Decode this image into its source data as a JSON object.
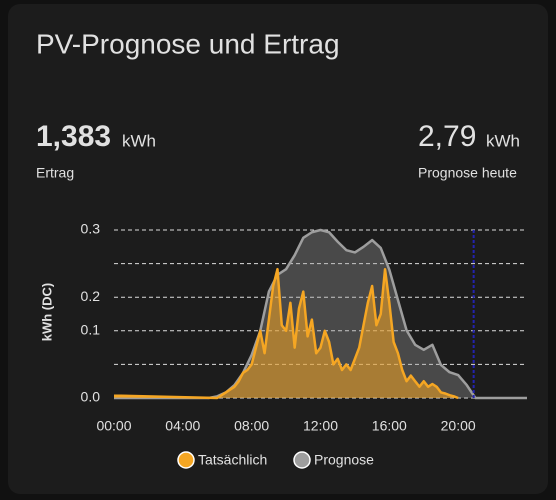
{
  "card": {
    "title": "PV-Prognose und Ertrag",
    "stats": [
      {
        "value": "1,383",
        "unit": "kWh",
        "label": "Ertrag",
        "color": "#f5a623"
      },
      {
        "value": "2,79",
        "unit": "kWh",
        "label": "Prognose heute",
        "color": "#9e9e9e"
      }
    ]
  },
  "chart_data": {
    "type": "area",
    "y_label": "kWh (DC)",
    "xlim": [
      0,
      24
    ],
    "xticks": [
      {
        "value": 0,
        "label": "00:00"
      },
      {
        "value": 4,
        "label": "04:00"
      },
      {
        "value": 8,
        "label": "08:00"
      },
      {
        "value": 12,
        "label": "12:00"
      },
      {
        "value": 16,
        "label": "16:00"
      },
      {
        "value": 20,
        "label": "20:00"
      }
    ],
    "ylim": [
      0,
      0.3
    ],
    "yticks": [
      {
        "value": 0,
        "label": "0.0"
      },
      {
        "value": 0.06,
        "label": null
      },
      {
        "value": 0.12,
        "label": "0.1"
      },
      {
        "value": 0.18,
        "label": "0.2"
      },
      {
        "value": 0.24,
        "label": null
      },
      {
        "value": 0.3,
        "label": "0.3"
      }
    ],
    "grid": true,
    "now_line": {
      "x": 20.9,
      "color": "#2323b0"
    },
    "series": [
      {
        "name": "Prognose",
        "color": "#9e9e9e",
        "x": [
          0,
          5.5,
          6,
          6.5,
          7,
          7.5,
          8,
          8.5,
          9,
          9.5,
          10,
          10.5,
          11,
          11.5,
          12,
          12.5,
          13,
          13.5,
          14,
          14.5,
          15,
          15.5,
          16,
          16.5,
          17,
          17.5,
          18,
          18.5,
          19,
          19.5,
          20,
          20.5,
          21,
          24
        ],
        "values": [
          0,
          0,
          0.003,
          0.01,
          0.023,
          0.045,
          0.077,
          0.12,
          0.19,
          0.22,
          0.23,
          0.255,
          0.286,
          0.296,
          0.3,
          0.296,
          0.279,
          0.264,
          0.26,
          0.27,
          0.282,
          0.268,
          0.229,
          0.175,
          0.121,
          0.095,
          0.086,
          0.095,
          0.059,
          0.046,
          0.041,
          0.023,
          0,
          0
        ]
      },
      {
        "name": "Tatsächlich",
        "color": "#f5a623",
        "x": [
          0,
          0.4,
          6,
          6.25,
          6.5,
          6.75,
          7,
          7.25,
          7.5,
          7.75,
          8,
          8.25,
          8.5,
          8.75,
          9,
          9.25,
          9.5,
          9.75,
          10,
          10.25,
          10.5,
          10.75,
          11,
          11.25,
          11.5,
          11.75,
          12,
          12.25,
          12.5,
          12.75,
          13,
          13.25,
          13.5,
          13.75,
          14,
          14.25,
          14.5,
          14.75,
          15,
          15.25,
          15.5,
          15.75,
          16,
          16.25,
          16.5,
          16.75,
          17,
          17.25,
          17.5,
          17.75,
          18,
          18.25,
          18.5,
          18.75,
          19,
          19.25,
          19.5,
          19.75,
          20
        ],
        "values": [
          0.004,
          0.004,
          0,
          0.005,
          0.01,
          0.015,
          0.02,
          0.03,
          0.045,
          0.05,
          0.06,
          0.09,
          0.12,
          0.08,
          0.14,
          0.2,
          0.23,
          0.13,
          0.12,
          0.17,
          0.09,
          0.16,
          0.19,
          0.11,
          0.14,
          0.08,
          0.09,
          0.12,
          0.1,
          0.06,
          0.07,
          0.05,
          0.06,
          0.05,
          0.07,
          0.09,
          0.13,
          0.17,
          0.2,
          0.13,
          0.15,
          0.23,
          0.17,
          0.1,
          0.08,
          0.05,
          0.03,
          0.04,
          0.03,
          0.02,
          0.03,
          0.02,
          0.025,
          0.02,
          0.01,
          0.008,
          0.005,
          0.003,
          0
        ]
      }
    ]
  }
}
